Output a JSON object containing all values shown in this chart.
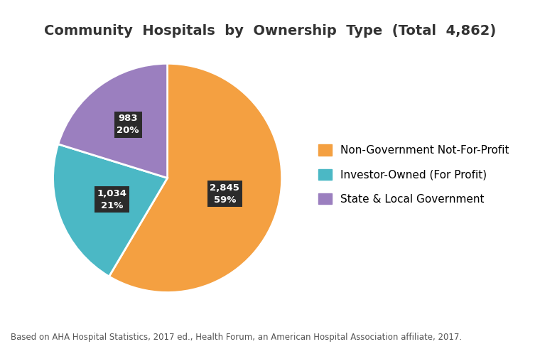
{
  "title": "Community  Hospitals  by  Ownership  Type  (Total  4,862)",
  "slices": [
    {
      "label": "Non-Government Not-For-Profit",
      "value": 2845,
      "pct": 59,
      "color": "#F4A041"
    },
    {
      "label": "Investor-Owned (For Profit)",
      "value": 1034,
      "pct": 21,
      "color": "#4BB8C5"
    },
    {
      "label": "State & Local Government",
      "value": 983,
      "pct": 20,
      "color": "#9B7FBF"
    }
  ],
  "annotation_box_color": "#2B2B2B",
  "annotation_text_color": "#FFFFFF",
  "footnote": "Based on AHA Hospital Statistics, 2017 ed., Health Forum, an American Hospital Association affiliate, 2017.",
  "footnote_fontsize": 8.5,
  "title_fontsize": 14,
  "legend_fontsize": 11,
  "background_color": "#FFFFFF",
  "label_offsets": [
    0.52,
    0.52,
    0.58
  ]
}
